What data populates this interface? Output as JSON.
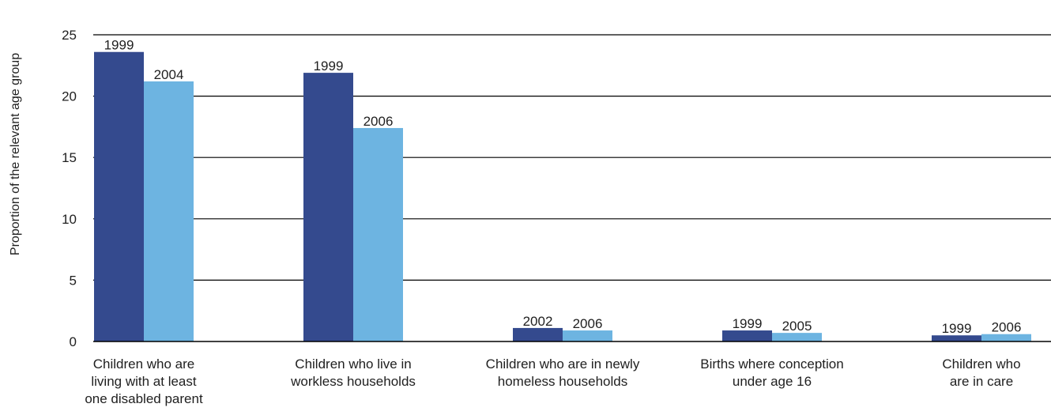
{
  "chart_data": {
    "type": "bar",
    "ylabel": "Proportion of the relevant age group",
    "ylim": [
      0,
      25
    ],
    "yticks": [
      0,
      5,
      10,
      15,
      20,
      25
    ],
    "grid": true,
    "legend": "none",
    "colors": {
      "dark_bar": "#344a8e",
      "light_bar": "#6db4e1",
      "grid": "#000000",
      "text": "#1f1f1f"
    },
    "groups": [
      {
        "category": [
          "Children who are",
          "living with at least",
          "one disabled parent"
        ],
        "bars": [
          {
            "label": "1999",
            "value": 23.6
          },
          {
            "label": "2004",
            "value": 21.2
          }
        ]
      },
      {
        "category": [
          "Children who live in",
          "workless households"
        ],
        "bars": [
          {
            "label": "1999",
            "value": 21.9
          },
          {
            "label": "2006",
            "value": 17.4
          }
        ]
      },
      {
        "category": [
          "Children who are in newly",
          "homeless households"
        ],
        "bars": [
          {
            "label": "2002",
            "value": 1.1
          },
          {
            "label": "2006",
            "value": 0.9
          }
        ]
      },
      {
        "category": [
          "Births where conception",
          "under age 16"
        ],
        "bars": [
          {
            "label": "1999",
            "value": 0.9
          },
          {
            "label": "2005",
            "value": 0.7
          }
        ]
      },
      {
        "category": [
          "Children who",
          "are in care"
        ],
        "bars": [
          {
            "label": "1999",
            "value": 0.5
          },
          {
            "label": "2006",
            "value": 0.6
          }
        ]
      }
    ]
  }
}
